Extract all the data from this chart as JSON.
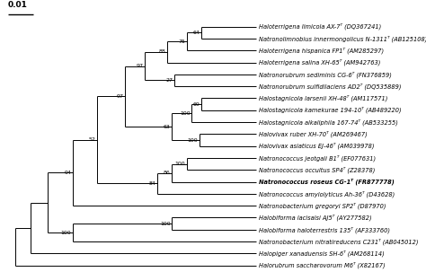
{
  "taxa": [
    {
      "name": "Haloterrigena limicola AX-7ᵀ (DQ367241)",
      "bold": false
    },
    {
      "name": "Natronolimnobius innermongolicus N-1311ᵀ (AB125108)",
      "bold": false
    },
    {
      "name": "Haloterrigena hispanica FP1ᵀ (AM285297)",
      "bold": false
    },
    {
      "name": "Haloterrigena salina XH-65ᵀ (AM942763)",
      "bold": false
    },
    {
      "name": "Natronorubrum sediminis CG-6ᵀ (FN376859)",
      "bold": false
    },
    {
      "name": "Natronorubrum sulfidilaciens AD2ᵀ (DQ535889)",
      "bold": false
    },
    {
      "name": "Halostagnicola larsenii XH-48ᵀ (AM117571)",
      "bold": false
    },
    {
      "name": "Halostagnicola kamekurae 194-10ᵀ (AB489220)",
      "bold": false
    },
    {
      "name": "Halostagnicola alkaliphila 167-74ᵀ (AB533255)",
      "bold": false
    },
    {
      "name": "Halovivax ruber XH-70ᵀ (AM269467)",
      "bold": false
    },
    {
      "name": "Halovivax asiaticus EJ-46ᵀ (AM039978)",
      "bold": false
    },
    {
      "name": "Natronococcus jeotgali B1ᵀ (EF077631)",
      "bold": false
    },
    {
      "name": "Natronococcus occultus SP4ᵀ (Z28378)",
      "bold": false
    },
    {
      "name": "Natronococcus roseus CG-1ᵀ (FR877778)",
      "bold": true
    },
    {
      "name": "Natronococcus amylolyticus Ah-36ᵀ (D43628)",
      "bold": false
    },
    {
      "name": "Natronobacterium gregoryi SP2ᵀ (D87970)",
      "bold": false
    },
    {
      "name": "Halobiforma lacisalsi AJ5ᵀ (AY277582)",
      "bold": false
    },
    {
      "name": "Halobiforma haloterrestris 135ᵀ (AF333760)",
      "bold": false
    },
    {
      "name": "Natronobacterium nitratireducens C231ᵀ (AB045012)",
      "bold": false
    },
    {
      "name": "Halopiger xanaduensis SH-6ᵀ (AM268114)",
      "bold": false
    },
    {
      "name": "Halorubrum saccharovorum M6ᵀ (X82167)",
      "bold": false
    }
  ],
  "scale_bar_label": "0.01",
  "line_color": "#000000",
  "text_color": "#000000",
  "bg_color": "#ffffff",
  "taxa_font_size": 4.8,
  "bootstrap_font_size": 4.5,
  "scale_font_size": 6.5,
  "lw": 0.7,
  "figsize": [
    4.74,
    3.03
  ],
  "dpi": 100,
  "xlim": [
    -0.3,
    12.5
  ],
  "ylim": [
    -0.5,
    21.5
  ]
}
